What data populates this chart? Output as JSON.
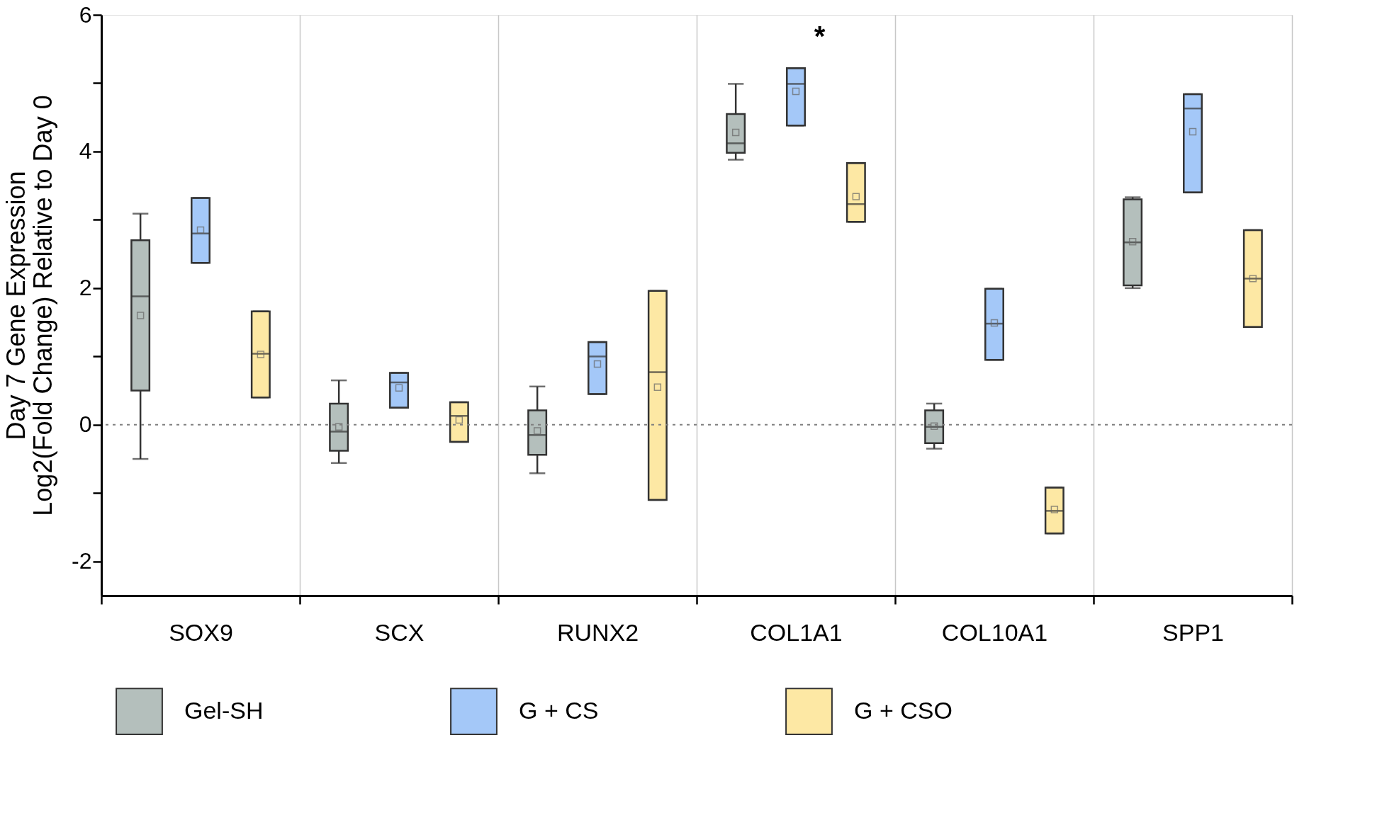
{
  "chart_data": {
    "type": "box",
    "ylabel": "Day 7 Gene Expression\nLog2(Fold Change) Relative to Day 0",
    "categories": [
      "SOX9",
      "SCX",
      "RUNX2",
      "COL1A1",
      "COL10A1",
      "SPP1"
    ],
    "ylim": [
      -2.5,
      6
    ],
    "yticks": [
      {
        "value": -2,
        "label": "-2"
      },
      {
        "value": -1,
        "label": null
      },
      0,
      {
        "value": 1,
        "label": null
      },
      2,
      {
        "value": 3,
        "label": null
      },
      4,
      {
        "value": 5,
        "label": null
      },
      6
    ],
    "grid": "x",
    "legend": "bottom",
    "ref_lines": [
      {
        "axis": "y",
        "value": 0,
        "label": null,
        "color": "#808080",
        "line_style": "dotted"
      }
    ],
    "annotations": [
      "*"
    ],
    "series": [
      {
        "name": "Gel-SH",
        "color": "#b4bfbc",
        "boxes": [
          {
            "low": -0.5,
            "q1": 0.5,
            "median": 1.88,
            "q3": 2.7,
            "high": 3.09,
            "mean": 1.6
          },
          {
            "low": -0.56,
            "q1": -0.38,
            "median": -0.1,
            "q3": 0.31,
            "high": 0.65,
            "mean": -0.03
          },
          {
            "low": -0.71,
            "q1": -0.44,
            "median": -0.15,
            "q3": 0.21,
            "high": 0.56,
            "mean": -0.09
          },
          {
            "low": 3.88,
            "q1": 3.98,
            "median": 4.12,
            "q3": 4.55,
            "high": 4.99,
            "mean": 4.28
          },
          {
            "low": -0.35,
            "q1": -0.27,
            "median": -0.03,
            "q3": 0.21,
            "high": 0.31,
            "mean": -0.02
          },
          {
            "low": 2.0,
            "q1": 2.04,
            "median": 2.67,
            "q3": 3.3,
            "high": 3.33,
            "mean": 2.68
          }
        ]
      },
      {
        "name": "G + CS",
        "color": "#a4c8f8",
        "boxes": [
          {
            "low": 2.37,
            "q1": 2.37,
            "median": 2.8,
            "q3": 3.32,
            "high": 3.32,
            "mean": 2.85
          },
          {
            "low": 0.25,
            "q1": 0.25,
            "median": 0.62,
            "q3": 0.76,
            "high": 0.76,
            "mean": 0.54
          },
          {
            "low": 0.45,
            "q1": 0.45,
            "median": 1.0,
            "q3": 1.21,
            "high": 1.21,
            "mean": 0.89
          },
          {
            "low": 4.38,
            "q1": 4.38,
            "median": 4.99,
            "q3": 5.22,
            "high": 5.22,
            "mean": 4.88
          },
          {
            "low": 0.95,
            "q1": 0.95,
            "median": 1.48,
            "q3": 1.99,
            "high": 1.99,
            "mean": 1.49
          },
          {
            "low": 3.4,
            "q1": 3.4,
            "median": 4.63,
            "q3": 4.84,
            "high": 4.84,
            "mean": 4.29
          }
        ]
      },
      {
        "name": "G + CSO",
        "color": "#fde8a4",
        "boxes": [
          {
            "low": 0.4,
            "q1": 0.4,
            "median": 1.04,
            "q3": 1.66,
            "high": 1.66,
            "mean": 1.03
          },
          {
            "low": -0.25,
            "q1": -0.25,
            "median": 0.13,
            "q3": 0.33,
            "high": 0.33,
            "mean": 0.07
          },
          {
            "low": -1.1,
            "q1": -1.1,
            "median": 0.77,
            "q3": 1.96,
            "high": 1.96,
            "mean": 0.55
          },
          {
            "low": 2.97,
            "q1": 2.97,
            "median": 3.23,
            "q3": 3.83,
            "high": 3.83,
            "mean": 3.34
          },
          {
            "low": -1.59,
            "q1": -1.59,
            "median": -1.26,
            "q3": -0.92,
            "high": -0.92,
            "mean": -1.24
          },
          {
            "low": 1.43,
            "q1": 1.43,
            "median": 2.14,
            "q3": 2.85,
            "high": 2.85,
            "mean": 2.14
          }
        ]
      }
    ]
  }
}
